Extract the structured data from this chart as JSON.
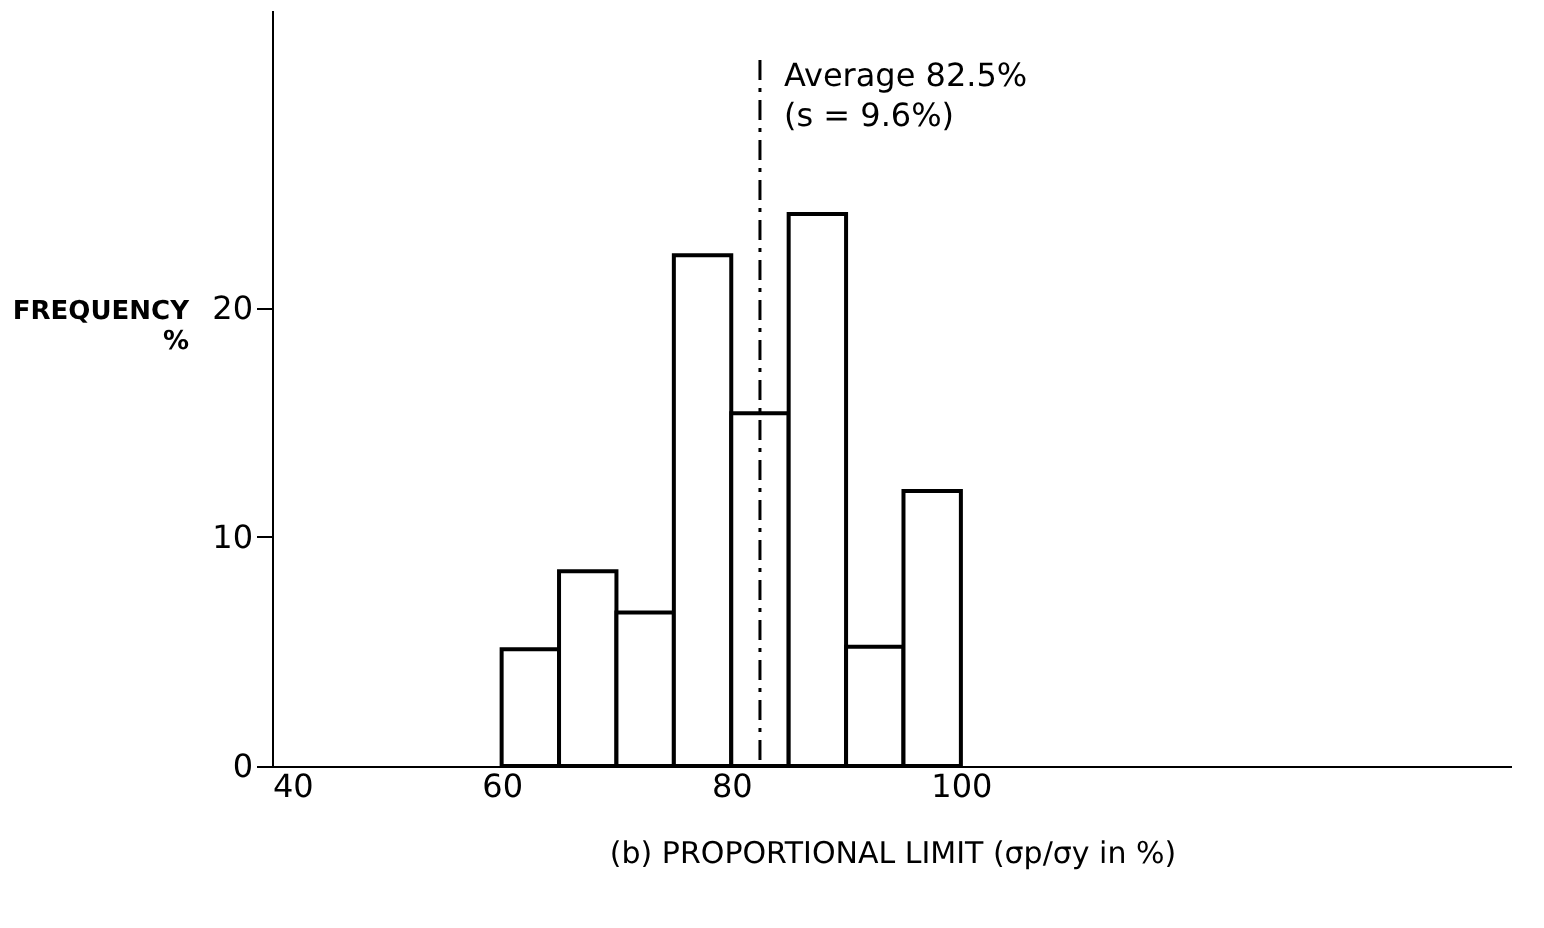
{
  "chart_data": {
    "type": "histogram",
    "bins": [
      60,
      65,
      70,
      75,
      80,
      85,
      90,
      95,
      100
    ],
    "values": [
      5.1,
      8.5,
      6.7,
      22.3,
      15.4,
      24.1,
      5.2,
      12.0
    ],
    "color": "#ffffff",
    "xlabel": "(b) PROPORTIONAL LIMIT   (σp/σy in %)",
    "ylabel": "FREQUENCY\n%",
    "xlim": [
      40,
      148
    ],
    "xticks": [
      40,
      60,
      80,
      100
    ],
    "ylim": [
      0,
      33
    ],
    "yticks": [
      0,
      10,
      20
    ],
    "grid": false,
    "ref_lines": [
      {
        "axis": "x",
        "value": 82.5,
        "label": "Average 82.5%\n(s = 9.6%)",
        "line_style": "dashdot",
        "color": "#000000"
      }
    ]
  }
}
